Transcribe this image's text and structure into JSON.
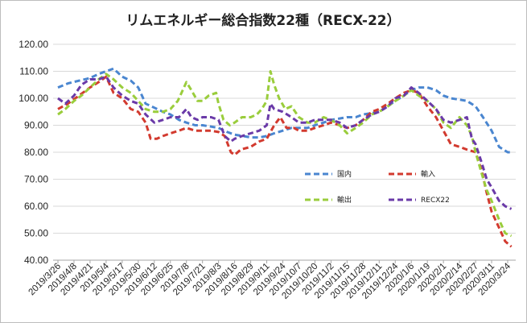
{
  "chart_data": {
    "type": "line",
    "title": "リムエネルギー総合指数22種（RECX-22）",
    "xlabel": "",
    "ylabel": "",
    "ylim": [
      40,
      120
    ],
    "yticks": [
      "40.00",
      "50.00",
      "60.00",
      "70.00",
      "80.00",
      "90.00",
      "100.00",
      "110.00",
      "120.00"
    ],
    "grid": true,
    "legend_position": "inside-bottom-right",
    "x_tick_labels": [
      "2019/3/26",
      "2019/4/8",
      "2019/4/21",
      "2019/5/4",
      "2019/5/17",
      "2019/5/30",
      "2019/6/12",
      "2019/6/25",
      "2019/7/8",
      "2019/7/21",
      "2019/8/3",
      "2019/8/16",
      "2019/8/29",
      "2019/9/11",
      "2019/9/24",
      "2019/10/7",
      "2019/10/20",
      "2019/11/2",
      "2019/11/15",
      "2019/11/28",
      "2019/12/11",
      "2019/12/24",
      "2020/1/6",
      "2020/1/19",
      "2020/2/1",
      "2020/2/14",
      "2020/2/27",
      "2020/3/11",
      "2020/3/24"
    ],
    "x_start": "2019/3/26",
    "x_end": "2020/3/24",
    "series": [
      {
        "name": "国内",
        "color": "#4a86d0",
        "points": [
          [
            "2019/3/26",
            104
          ],
          [
            "2019/4/3",
            105.5
          ],
          [
            "2019/4/12",
            106.5
          ],
          [
            "2019/4/21",
            107.5
          ],
          [
            "2019/4/28",
            109
          ],
          [
            "2019/5/4",
            110
          ],
          [
            "2019/5/10",
            111
          ],
          [
            "2019/5/17",
            108
          ],
          [
            "2019/5/24",
            106.5
          ],
          [
            "2019/5/30",
            104
          ],
          [
            "2019/6/5",
            98
          ],
          [
            "2019/6/12",
            96.5
          ],
          [
            "2019/6/19",
            95
          ],
          [
            "2019/6/25",
            94
          ],
          [
            "2019/7/2",
            92
          ],
          [
            "2019/7/8",
            91
          ],
          [
            "2019/7/15",
            90
          ],
          [
            "2019/7/21",
            90
          ],
          [
            "2019/7/28",
            89.5
          ],
          [
            "2019/8/3",
            89
          ],
          [
            "2019/8/10",
            87.5
          ],
          [
            "2019/8/16",
            86.5
          ],
          [
            "2019/8/23",
            86
          ],
          [
            "2019/8/29",
            85.5
          ],
          [
            "2019/9/5",
            85.5
          ],
          [
            "2019/9/11",
            86
          ],
          [
            "2019/9/17",
            87
          ],
          [
            "2019/9/24",
            88
          ],
          [
            "2019/10/1",
            89
          ],
          [
            "2019/10/7",
            89
          ],
          [
            "2019/10/14",
            89
          ],
          [
            "2019/10/20",
            90
          ],
          [
            "2019/10/27",
            91
          ],
          [
            "2019/11/2",
            92
          ],
          [
            "2019/11/9",
            92.5
          ],
          [
            "2019/11/15",
            93
          ],
          [
            "2019/11/22",
            93
          ],
          [
            "2019/11/28",
            94
          ],
          [
            "2019/12/5",
            94.5
          ],
          [
            "2019/12/11",
            95
          ],
          [
            "2019/12/18",
            97
          ],
          [
            "2019/12/24",
            99
          ],
          [
            "2019/12/31",
            101
          ],
          [
            "2020/1/6",
            103
          ],
          [
            "2020/1/12",
            104
          ],
          [
            "2020/1/19",
            104
          ],
          [
            "2020/1/26",
            103
          ],
          [
            "2020/2/1",
            101
          ],
          [
            "2020/2/7",
            100
          ],
          [
            "2020/2/14",
            99.5
          ],
          [
            "2020/2/20",
            99
          ],
          [
            "2020/2/27",
            97
          ],
          [
            "2020/3/4",
            93
          ],
          [
            "2020/3/11",
            88
          ],
          [
            "2020/3/17",
            82
          ],
          [
            "2020/3/24",
            80
          ],
          [
            "2020/3/27",
            80
          ]
        ]
      },
      {
        "name": "輸入",
        "color": "#d23a2f",
        "points": [
          [
            "2019/3/26",
            96
          ],
          [
            "2019/4/3",
            98
          ],
          [
            "2019/4/12",
            101
          ],
          [
            "2019/4/21",
            104
          ],
          [
            "2019/4/28",
            106
          ],
          [
            "2019/5/4",
            108
          ],
          [
            "2019/5/10",
            102
          ],
          [
            "2019/5/17",
            100
          ],
          [
            "2019/5/24",
            96
          ],
          [
            "2019/5/30",
            95
          ],
          [
            "2019/6/5",
            91
          ],
          [
            "2019/6/9",
            85
          ],
          [
            "2019/6/14",
            85
          ],
          [
            "2019/6/19",
            86
          ],
          [
            "2019/6/25",
            87
          ],
          [
            "2019/7/2",
            88
          ],
          [
            "2019/7/8",
            89
          ],
          [
            "2019/7/15",
            88
          ],
          [
            "2019/7/21",
            88
          ],
          [
            "2019/7/28",
            88
          ],
          [
            "2019/8/3",
            87.5
          ],
          [
            "2019/8/8",
            86
          ],
          [
            "2019/8/13",
            80
          ],
          [
            "2019/8/16",
            79
          ],
          [
            "2019/8/21",
            81
          ],
          [
            "2019/8/29",
            82
          ],
          [
            "2019/9/5",
            84
          ],
          [
            "2019/9/11",
            85
          ],
          [
            "2019/9/17",
            90
          ],
          [
            "2019/9/22",
            93
          ],
          [
            "2019/9/27",
            89
          ],
          [
            "2019/10/3",
            89
          ],
          [
            "2019/10/7",
            88
          ],
          [
            "2019/10/14",
            88
          ],
          [
            "2019/10/20",
            89
          ],
          [
            "2019/10/27",
            90
          ],
          [
            "2019/11/2",
            91
          ],
          [
            "2019/11/9",
            90
          ],
          [
            "2019/11/15",
            89
          ],
          [
            "2019/11/22",
            90
          ],
          [
            "2019/11/28",
            92
          ],
          [
            "2019/12/5",
            95
          ],
          [
            "2019/12/11",
            96
          ],
          [
            "2019/12/18",
            98
          ],
          [
            "2019/12/24",
            100
          ],
          [
            "2019/12/31",
            102
          ],
          [
            "2020/1/6",
            103
          ],
          [
            "2020/1/12",
            102
          ],
          [
            "2020/1/19",
            97
          ],
          [
            "2020/1/26",
            93
          ],
          [
            "2020/2/1",
            88
          ],
          [
            "2020/2/7",
            83
          ],
          [
            "2020/2/14",
            82
          ],
          [
            "2020/2/20",
            81
          ],
          [
            "2020/2/27",
            80
          ],
          [
            "2020/3/3",
            73
          ],
          [
            "2020/3/7",
            65
          ],
          [
            "2020/3/11",
            58
          ],
          [
            "2020/3/17",
            52
          ],
          [
            "2020/3/22",
            47
          ],
          [
            "2020/3/27",
            45
          ]
        ]
      },
      {
        "name": "輸出",
        "color": "#9acd3c",
        "points": [
          [
            "2019/3/26",
            94
          ],
          [
            "2019/4/1",
            96
          ],
          [
            "2019/4/8",
            99
          ],
          [
            "2019/4/14",
            101
          ],
          [
            "2019/4/21",
            104
          ],
          [
            "2019/4/28",
            107
          ],
          [
            "2019/5/4",
            109
          ],
          [
            "2019/5/10",
            107
          ],
          [
            "2019/5/17",
            104
          ],
          [
            "2019/5/24",
            102
          ],
          [
            "2019/5/30",
            99
          ],
          [
            "2019/6/5",
            96
          ],
          [
            "2019/6/12",
            95
          ],
          [
            "2019/6/19",
            95
          ],
          [
            "2019/6/25",
            96
          ],
          [
            "2019/7/1",
            99
          ],
          [
            "2019/7/5",
            103
          ],
          [
            "2019/7/8",
            106
          ],
          [
            "2019/7/12",
            103
          ],
          [
            "2019/7/17",
            99
          ],
          [
            "2019/7/21",
            99
          ],
          [
            "2019/7/26",
            101
          ],
          [
            "2019/8/1",
            102
          ],
          [
            "2019/8/3",
            98
          ],
          [
            "2019/8/7",
            92
          ],
          [
            "2019/8/12",
            90
          ],
          [
            "2019/8/16",
            91
          ],
          [
            "2019/8/22",
            93
          ],
          [
            "2019/8/29",
            93
          ],
          [
            "2019/9/3",
            94
          ],
          [
            "2019/9/7",
            96
          ],
          [
            "2019/9/11",
            99
          ],
          [
            "2019/9/14",
            110
          ],
          [
            "2019/9/17",
            105
          ],
          [
            "2019/9/21",
            100
          ],
          [
            "2019/9/26",
            96
          ],
          [
            "2019/10/1",
            97
          ],
          [
            "2019/10/7",
            93
          ],
          [
            "2019/10/14",
            91
          ],
          [
            "2019/10/20",
            91
          ],
          [
            "2019/10/27",
            93
          ],
          [
            "2019/11/2",
            92
          ],
          [
            "2019/11/9",
            90
          ],
          [
            "2019/11/15",
            87
          ],
          [
            "2019/11/22",
            89
          ],
          [
            "2019/11/28",
            91
          ],
          [
            "2019/12/5",
            94
          ],
          [
            "2019/12/11",
            95
          ],
          [
            "2019/12/18",
            97
          ],
          [
            "2019/12/24",
            99
          ],
          [
            "2019/12/31",
            101
          ],
          [
            "2020/1/6",
            103
          ],
          [
            "2020/1/12",
            101
          ],
          [
            "2020/1/19",
            99
          ],
          [
            "2020/1/26",
            96
          ],
          [
            "2020/2/1",
            91
          ],
          [
            "2020/2/7",
            89
          ],
          [
            "2020/2/14",
            93
          ],
          [
            "2020/2/20",
            90
          ],
          [
            "2020/2/24",
            86
          ],
          [
            "2020/2/27",
            80
          ],
          [
            "2020/3/3",
            72
          ],
          [
            "2020/3/7",
            66
          ],
          [
            "2020/3/11",
            62
          ],
          [
            "2020/3/17",
            55
          ],
          [
            "2020/3/22",
            50
          ],
          [
            "2020/3/27",
            49
          ]
        ]
      },
      {
        "name": "RECX22",
        "color": "#6a3aa8",
        "points": [
          [
            "2019/3/26",
            100
          ],
          [
            "2019/4/1",
            98
          ],
          [
            "2019/4/8",
            101
          ],
          [
            "2019/4/14",
            105
          ],
          [
            "2019/4/21",
            107
          ],
          [
            "2019/4/28",
            107
          ],
          [
            "2019/5/4",
            108
          ],
          [
            "2019/5/10",
            104
          ],
          [
            "2019/5/17",
            101
          ],
          [
            "2019/5/24",
            99
          ],
          [
            "2019/5/30",
            98
          ],
          [
            "2019/6/5",
            94
          ],
          [
            "2019/6/12",
            91
          ],
          [
            "2019/6/19",
            92
          ],
          [
            "2019/6/25",
            93
          ],
          [
            "2019/7/2",
            93
          ],
          [
            "2019/7/8",
            96
          ],
          [
            "2019/7/12",
            93
          ],
          [
            "2019/7/17",
            92
          ],
          [
            "2019/7/21",
            93
          ],
          [
            "2019/7/28",
            93
          ],
          [
            "2019/8/3",
            92
          ],
          [
            "2019/8/8",
            86
          ],
          [
            "2019/8/13",
            84
          ],
          [
            "2019/8/16",
            85
          ],
          [
            "2019/8/22",
            86
          ],
          [
            "2019/8/29",
            87
          ],
          [
            "2019/9/5",
            88
          ],
          [
            "2019/9/11",
            90
          ],
          [
            "2019/9/14",
            98
          ],
          [
            "2019/9/17",
            96
          ],
          [
            "2019/9/24",
            95
          ],
          [
            "2019/10/1",
            93
          ],
          [
            "2019/10/7",
            91
          ],
          [
            "2019/10/14",
            91
          ],
          [
            "2019/10/20",
            92
          ],
          [
            "2019/10/27",
            92
          ],
          [
            "2019/11/2",
            92
          ],
          [
            "2019/11/9",
            91
          ],
          [
            "2019/11/15",
            89
          ],
          [
            "2019/11/22",
            90
          ],
          [
            "2019/11/28",
            92
          ],
          [
            "2019/12/5",
            94
          ],
          [
            "2019/12/11",
            95
          ],
          [
            "2019/12/18",
            97
          ],
          [
            "2019/12/24",
            100
          ],
          [
            "2019/12/31",
            101
          ],
          [
            "2020/1/6",
            104
          ],
          [
            "2020/1/12",
            102
          ],
          [
            "2020/1/19",
            99
          ],
          [
            "2020/1/26",
            96
          ],
          [
            "2020/2/1",
            92
          ],
          [
            "2020/2/7",
            91
          ],
          [
            "2020/2/14",
            92
          ],
          [
            "2020/2/20",
            93
          ],
          [
            "2020/2/24",
            85
          ],
          [
            "2020/2/27",
            83
          ],
          [
            "2020/3/3",
            76
          ],
          [
            "2020/3/7",
            70
          ],
          [
            "2020/3/11",
            67
          ],
          [
            "2020/3/17",
            62
          ],
          [
            "2020/3/22",
            60
          ],
          [
            "2020/3/27",
            59
          ]
        ]
      }
    ]
  }
}
